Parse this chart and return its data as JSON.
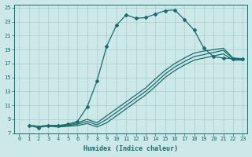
{
  "xlabel": "Humidex (Indice chaleur)",
  "xlim": [
    -0.5,
    23.5
  ],
  "ylim": [
    7,
    25.5
  ],
  "xticks": [
    0,
    1,
    2,
    3,
    4,
    5,
    6,
    7,
    8,
    9,
    10,
    11,
    12,
    13,
    14,
    15,
    16,
    17,
    18,
    19,
    20,
    21,
    22,
    23
  ],
  "yticks": [
    7,
    9,
    11,
    13,
    15,
    17,
    19,
    21,
    23,
    25
  ],
  "bg_color": "#cce8e8",
  "grid_color": "#aacccc",
  "line_color": "#1a6b6b",
  "line1": {
    "x": [
      1,
      2,
      3,
      4,
      5,
      6,
      7,
      8,
      9,
      10,
      11,
      12,
      13,
      14,
      15,
      16,
      17,
      18,
      19,
      20,
      21,
      22,
      23
    ],
    "y": [
      8.1,
      7.8,
      8.1,
      8.1,
      8.3,
      8.7,
      10.8,
      14.5,
      19.5,
      22.5,
      24.0,
      23.5,
      23.6,
      24.1,
      24.6,
      24.7,
      23.3,
      21.8,
      19.2,
      18.0,
      17.8,
      17.7,
      17.7
    ],
    "marker": true
  },
  "line2": {
    "x": [
      1,
      2,
      3,
      4,
      5,
      6,
      7,
      8,
      9,
      10,
      11,
      12,
      13,
      14,
      15,
      16,
      17,
      18,
      19,
      20,
      21,
      22,
      23
    ],
    "y": [
      8.1,
      8.0,
      8.1,
      8.1,
      8.2,
      8.5,
      9.0,
      8.5,
      9.5,
      10.5,
      11.5,
      12.5,
      13.5,
      14.8,
      16.0,
      17.0,
      17.8,
      18.5,
      18.8,
      19.0,
      19.2,
      17.8,
      17.7
    ]
  },
  "line3": {
    "x": [
      1,
      2,
      3,
      4,
      5,
      6,
      7,
      8,
      9,
      10,
      11,
      12,
      13,
      14,
      15,
      16,
      17,
      18,
      19,
      20,
      21,
      22,
      23
    ],
    "y": [
      8.1,
      8.0,
      8.1,
      8.0,
      8.1,
      8.3,
      8.7,
      8.2,
      9.0,
      10.0,
      11.0,
      12.0,
      13.0,
      14.2,
      15.5,
      16.5,
      17.3,
      18.0,
      18.3,
      18.6,
      18.9,
      17.7,
      17.6
    ]
  },
  "line4": {
    "x": [
      1,
      2,
      3,
      4,
      5,
      6,
      7,
      8,
      9,
      10,
      11,
      12,
      13,
      14,
      15,
      16,
      17,
      18,
      19,
      20,
      21,
      22,
      23
    ],
    "y": [
      8.1,
      8.0,
      8.0,
      7.9,
      8.0,
      8.1,
      8.4,
      7.9,
      8.5,
      9.5,
      10.5,
      11.5,
      12.5,
      13.7,
      15.0,
      16.0,
      16.8,
      17.5,
      17.8,
      18.1,
      18.4,
      17.5,
      17.5
    ]
  }
}
